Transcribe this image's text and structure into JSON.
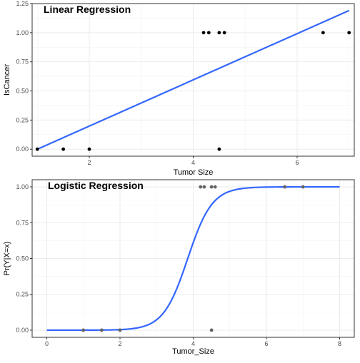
{
  "chart_data": [
    {
      "type": "scatter",
      "annotation": "Linear Regression",
      "xlabel": "Tumor Size",
      "ylabel": "IsCancer",
      "xlim": [
        0.9,
        7.1
      ],
      "ylim": [
        -0.06,
        1.25
      ],
      "x_ticks": [
        2,
        4,
        6
      ],
      "y_ticks": [
        0.0,
        0.25,
        0.5,
        0.75,
        1.0,
        1.25
      ],
      "x_tick_labels": [
        "2",
        "4",
        "6"
      ],
      "y_tick_labels": [
        "0.00",
        "0.25",
        "0.50",
        "0.75",
        "1.00",
        "1.25"
      ],
      "grid": true,
      "points": [
        {
          "x": 1.0,
          "y": 0
        },
        {
          "x": 1.5,
          "y": 0
        },
        {
          "x": 2.0,
          "y": 0
        },
        {
          "x": 4.2,
          "y": 1
        },
        {
          "x": 4.3,
          "y": 1
        },
        {
          "x": 4.5,
          "y": 0
        },
        {
          "x": 4.5,
          "y": 1
        },
        {
          "x": 4.6,
          "y": 1
        },
        {
          "x": 6.5,
          "y": 1
        },
        {
          "x": 7.0,
          "y": 1
        }
      ],
      "fit": {
        "kind": "linear",
        "x_range": [
          1.0,
          7.0
        ],
        "y_range": [
          0.0,
          1.19
        ]
      },
      "colors": {
        "point": "#000000",
        "line": "#3366ff"
      }
    },
    {
      "type": "scatter",
      "annotation": "Logistic Regression",
      "xlabel": "Tumor_Size",
      "ylabel": "Pr(Y|X=x)",
      "xlim": [
        -0.4,
        8.4
      ],
      "ylim": [
        -0.05,
        1.05
      ],
      "x_ticks": [
        0,
        2,
        4,
        6,
        8
      ],
      "y_ticks": [
        0.0,
        0.25,
        0.5,
        0.75,
        1.0
      ],
      "x_tick_labels": [
        "0",
        "2",
        "4",
        "6",
        "8"
      ],
      "y_tick_labels": [
        "0.00",
        "0.25",
        "0.50",
        "0.75",
        "1.00"
      ],
      "grid": true,
      "points": [
        {
          "x": 1.0,
          "y": 0
        },
        {
          "x": 1.5,
          "y": 0
        },
        {
          "x": 2.0,
          "y": 0
        },
        {
          "x": 4.2,
          "y": 1
        },
        {
          "x": 4.3,
          "y": 1
        },
        {
          "x": 4.5,
          "y": 0
        },
        {
          "x": 4.5,
          "y": 1
        },
        {
          "x": 4.6,
          "y": 1
        },
        {
          "x": 6.5,
          "y": 1
        },
        {
          "x": 7.0,
          "y": 1
        }
      ],
      "fit": {
        "kind": "logistic",
        "x_range": [
          0,
          8
        ],
        "midpoint": 3.85,
        "slope": 3.0
      },
      "colors": {
        "point": "#636363",
        "line": "#3366ff"
      }
    }
  ]
}
